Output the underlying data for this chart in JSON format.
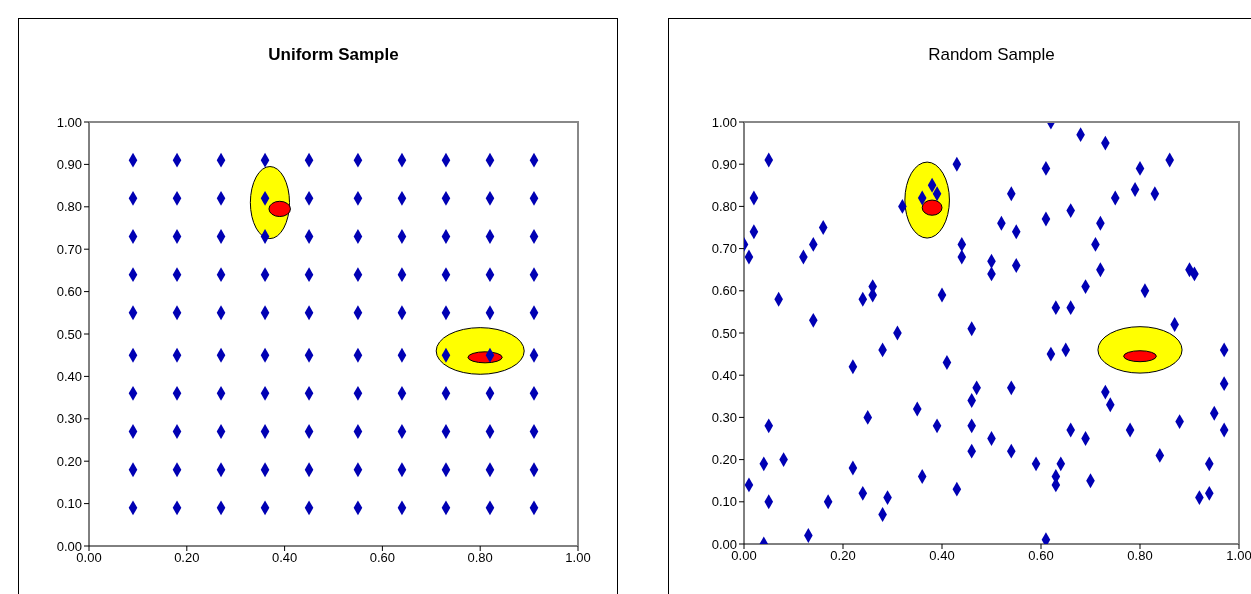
{
  "chart_data": [
    {
      "type": "scatter",
      "title": "Uniform Sample",
      "marker": "diamond",
      "grid": false,
      "xlim": [
        0,
        1
      ],
      "ylim": [
        0,
        1
      ],
      "xticks": [
        {
          "value": 0,
          "label": "0.00"
        },
        {
          "value": 0.2,
          "label": "0.20"
        },
        {
          "value": 0.4,
          "label": "0.40"
        },
        {
          "value": 0.6,
          "label": "0.60"
        },
        {
          "value": 0.8,
          "label": "0.80"
        },
        {
          "value": 1,
          "label": "1.00"
        }
      ],
      "yticks": [
        {
          "value": 0,
          "label": "0.00"
        },
        {
          "value": 0.1,
          "label": "0.10"
        },
        {
          "value": 0.2,
          "label": "0.20"
        },
        {
          "value": 0.3,
          "label": "0.30"
        },
        {
          "value": 0.4,
          "label": "0.40"
        },
        {
          "value": 0.5,
          "label": "0.50"
        },
        {
          "value": 0.6,
          "label": "0.60"
        },
        {
          "value": 0.7,
          "label": "0.70"
        },
        {
          "value": 0.8,
          "label": "0.80"
        },
        {
          "value": 0.9,
          "label": "0.90"
        },
        {
          "value": 1,
          "label": "1.00"
        }
      ],
      "series": [
        {
          "color": "#0000b4",
          "x": [
            0.09,
            0.18,
            0.27,
            0.36,
            0.45,
            0.55,
            0.64,
            0.73,
            0.82,
            0.91,
            0.09,
            0.18,
            0.27,
            0.36,
            0.45,
            0.55,
            0.64,
            0.73,
            0.82,
            0.91,
            0.09,
            0.18,
            0.27,
            0.36,
            0.45,
            0.55,
            0.64,
            0.73,
            0.82,
            0.91,
            0.09,
            0.18,
            0.27,
            0.36,
            0.45,
            0.55,
            0.64,
            0.73,
            0.82,
            0.91,
            0.09,
            0.18,
            0.27,
            0.36,
            0.45,
            0.55,
            0.64,
            0.73,
            0.82,
            0.91,
            0.09,
            0.18,
            0.27,
            0.36,
            0.45,
            0.55,
            0.64,
            0.73,
            0.82,
            0.91,
            0.09,
            0.18,
            0.27,
            0.36,
            0.45,
            0.55,
            0.64,
            0.73,
            0.82,
            0.91,
            0.09,
            0.18,
            0.27,
            0.36,
            0.45,
            0.55,
            0.64,
            0.73,
            0.82,
            0.91,
            0.09,
            0.18,
            0.27,
            0.36,
            0.45,
            0.55,
            0.64,
            0.73,
            0.82,
            0.91,
            0.09,
            0.18,
            0.27,
            0.36,
            0.45,
            0.55,
            0.64,
            0.73,
            0.82,
            0.91
          ],
          "values": [
            0.09,
            0.09,
            0.09,
            0.09,
            0.09,
            0.09,
            0.09,
            0.09,
            0.09,
            0.09,
            0.18,
            0.18,
            0.18,
            0.18,
            0.18,
            0.18,
            0.18,
            0.18,
            0.18,
            0.18,
            0.27,
            0.27,
            0.27,
            0.27,
            0.27,
            0.27,
            0.27,
            0.27,
            0.27,
            0.27,
            0.36,
            0.36,
            0.36,
            0.36,
            0.36,
            0.36,
            0.36,
            0.36,
            0.36,
            0.36,
            0.45,
            0.45,
            0.45,
            0.45,
            0.45,
            0.45,
            0.45,
            0.45,
            0.45,
            0.45,
            0.55,
            0.55,
            0.55,
            0.55,
            0.55,
            0.55,
            0.55,
            0.55,
            0.55,
            0.55,
            0.64,
            0.64,
            0.64,
            0.64,
            0.64,
            0.64,
            0.64,
            0.64,
            0.64,
            0.64,
            0.73,
            0.73,
            0.73,
            0.73,
            0.73,
            0.73,
            0.73,
            0.73,
            0.73,
            0.73,
            0.82,
            0.82,
            0.82,
            0.82,
            0.82,
            0.82,
            0.82,
            0.82,
            0.82,
            0.82,
            0.91,
            0.91,
            0.91,
            0.91,
            0.91,
            0.91,
            0.91,
            0.91,
            0.91,
            0.91
          ]
        }
      ]
    },
    {
      "type": "scatter",
      "title": "Random Sample",
      "marker": "diamond",
      "grid": false,
      "xlim": [
        0,
        1
      ],
      "ylim": [
        0,
        1
      ],
      "xticks": [
        {
          "value": 0,
          "label": "0.00"
        },
        {
          "value": 0.2,
          "label": "0.20"
        },
        {
          "value": 0.4,
          "label": "0.40"
        },
        {
          "value": 0.6,
          "label": "0.60"
        },
        {
          "value": 0.8,
          "label": "0.80"
        },
        {
          "value": 1,
          "label": "1.00"
        }
      ],
      "yticks": [
        {
          "value": 0,
          "label": "0.00"
        },
        {
          "value": 0.1,
          "label": "0.10"
        },
        {
          "value": 0.2,
          "label": "0.20"
        },
        {
          "value": 0.3,
          "label": "0.30"
        },
        {
          "value": 0.4,
          "label": "0.40"
        },
        {
          "value": 0.5,
          "label": "0.50"
        },
        {
          "value": 0.6,
          "label": "0.60"
        },
        {
          "value": 0.7,
          "label": "0.70"
        },
        {
          "value": 0.8,
          "label": "0.80"
        },
        {
          "value": 0.9,
          "label": "0.90"
        },
        {
          "value": 1,
          "label": "1.00"
        }
      ],
      "series": [
        {
          "color": "#0000b4",
          "x": [
            0.05,
            0.02,
            0.02,
            0.0,
            0.01,
            0.16,
            0.14,
            0.12,
            0.07,
            0.14,
            0.26,
            0.24,
            0.26,
            0.31,
            0.32,
            0.36,
            0.38,
            0.39,
            0.43,
            0.44,
            0.44,
            0.4,
            0.46,
            0.5,
            0.5,
            0.62,
            0.68,
            0.73,
            0.61,
            0.86,
            0.8,
            0.54,
            0.75,
            0.79,
            0.83,
            0.66,
            0.61,
            0.52,
            0.55,
            0.72,
            0.71,
            0.55,
            0.72,
            0.69,
            0.81,
            0.9,
            0.91,
            0.63,
            0.66,
            0.87,
            0.28,
            0.22,
            0.41,
            0.47,
            0.46,
            0.35,
            0.25,
            0.05,
            0.39,
            0.46,
            0.5,
            0.08,
            0.04,
            0.46,
            0.22,
            0.36,
            0.01,
            0.05,
            0.17,
            0.24,
            0.29,
            0.28,
            0.43,
            0.13,
            0.04,
            0.62,
            0.65,
            0.54,
            0.73,
            0.74,
            0.97,
            0.97,
            0.95,
            0.88,
            0.97,
            0.78,
            0.66,
            0.69,
            0.54,
            0.59,
            0.64,
            0.63,
            0.63,
            0.7,
            0.84,
            0.94,
            0.94,
            0.92,
            0.61
          ],
          "values": [
            0.91,
            0.82,
            0.74,
            0.71,
            0.68,
            0.75,
            0.71,
            0.68,
            0.58,
            0.53,
            0.61,
            0.58,
            0.59,
            0.5,
            0.8,
            0.82,
            0.85,
            0.83,
            0.9,
            0.71,
            0.68,
            0.59,
            0.51,
            0.67,
            0.64,
            1.0,
            0.97,
            0.95,
            0.89,
            0.91,
            0.89,
            0.83,
            0.82,
            0.84,
            0.83,
            0.79,
            0.77,
            0.76,
            0.74,
            0.76,
            0.71,
            0.66,
            0.65,
            0.61,
            0.6,
            0.65,
            0.64,
            0.56,
            0.56,
            0.52,
            0.46,
            0.42,
            0.43,
            0.37,
            0.34,
            0.32,
            0.3,
            0.28,
            0.28,
            0.28,
            0.25,
            0.2,
            0.19,
            0.22,
            0.18,
            0.16,
            0.14,
            0.1,
            0.1,
            0.12,
            0.11,
            0.07,
            0.13,
            0.02,
            0.0,
            0.45,
            0.46,
            0.37,
            0.36,
            0.33,
            0.46,
            0.38,
            0.31,
            0.29,
            0.27,
            0.27,
            0.27,
            0.25,
            0.22,
            0.19,
            0.19,
            0.16,
            0.14,
            0.15,
            0.21,
            0.19,
            0.12,
            0.11,
            0.01
          ]
        }
      ]
    }
  ]
}
